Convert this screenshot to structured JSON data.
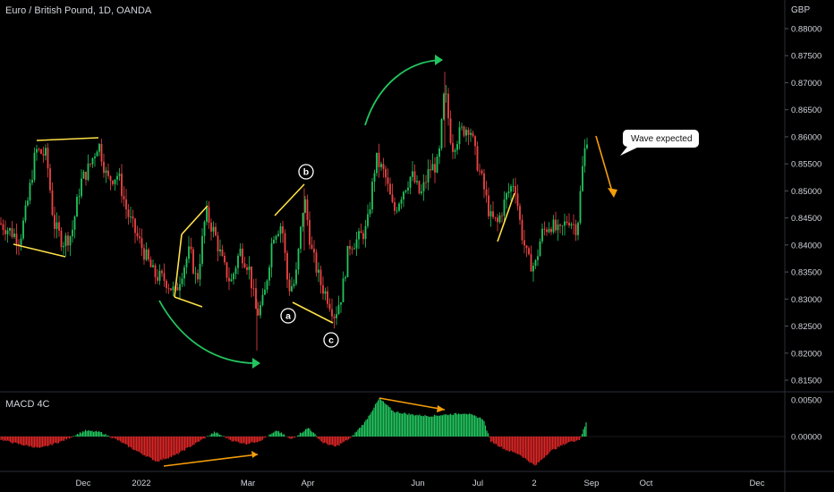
{
  "chart_data": [
    {
      "type": "candlestick",
      "title": "Euro / British Pound, 1D, OANDA",
      "currency": "GBP",
      "y_ticks": [
        0.815,
        0.82,
        0.825,
        0.83,
        0.835,
        0.84,
        0.845,
        0.85,
        0.855,
        0.86,
        0.865,
        0.87,
        0.875,
        0.88
      ],
      "y_tick_labels": [
        "0.81500",
        "0.82000",
        "0.82500",
        "0.83000",
        "0.83500",
        "0.84000",
        "0.84500",
        "0.85000",
        "0.85500",
        "0.86000",
        "0.86500",
        "0.87000",
        "0.87500",
        "0.88000"
      ],
      "ylim": [
        0.8115,
        0.8895
      ],
      "x_tick_labels": [
        "Dec",
        "2022",
        "Mar",
        "Apr",
        "Jun",
        "Jul",
        "2",
        "Sep",
        "Oct",
        "Dec"
      ],
      "up_color": "#22c55e",
      "down_color": "#ef4444",
      "series": [
        {
          "x": "Nov 2021",
          "close": 0.8425
        },
        {
          "x": "Nov 2021",
          "close": 0.8415
        },
        {
          "x": "Dec 2021",
          "close": 0.858
        },
        {
          "x": "Dec 2021",
          "close": 0.843
        },
        {
          "x": "Dec 2021",
          "close": 0.859
        },
        {
          "x": "Dec 2021",
          "close": 0.846
        },
        {
          "x": "Jan 2022",
          "close": 0.839
        },
        {
          "x": "Jan 2022",
          "close": 0.834
        },
        {
          "x": "Feb 2022",
          "close": 0.832
        },
        {
          "x": "Feb 2022",
          "close": 0.845
        },
        {
          "x": "Feb 2022",
          "close": 0.843
        },
        {
          "x": "Mar 2022",
          "close": 0.838
        },
        {
          "x": "Mar 2022",
          "close": 0.826
        },
        {
          "x": "Mar 2022",
          "close": 0.842
        },
        {
          "x": "Apr 2022",
          "close": 0.835
        },
        {
          "x": "Apr 2022",
          "close": 0.849
        },
        {
          "x": "Apr 2022",
          "close": 0.827
        },
        {
          "x": "May 2022",
          "close": 0.841
        },
        {
          "x": "May 2022",
          "close": 0.856
        },
        {
          "x": "May 2022",
          "close": 0.85
        },
        {
          "x": "Jun 2022",
          "close": 0.858
        },
        {
          "x": "Jun 2022",
          "close": 0.86
        },
        {
          "x": "Jun 2022",
          "close": 0.858
        },
        {
          "x": "Jul 2022",
          "close": 0.845
        },
        {
          "x": "Jul 2022",
          "close": 0.841
        },
        {
          "x": "Jul 2022",
          "close": 0.849
        },
        {
          "x": "Aug 2022",
          "close": 0.837
        },
        {
          "x": "Aug 2022",
          "close": 0.842
        },
        {
          "x": "Aug 2022",
          "close": 0.844
        },
        {
          "x": "Aug 2022",
          "close": 0.86
        }
      ],
      "annotations": [
        {
          "text": "a",
          "value": 0.827
        },
        {
          "text": "b",
          "value": 0.851
        },
        {
          "text": "c",
          "value": 0.825
        },
        {
          "text": "Wave expected"
        }
      ]
    },
    {
      "type": "bar",
      "title": "MACD 4C",
      "y_ticks": [
        0.0,
        0.005
      ],
      "y_tick_labels": [
        "0.00000",
        "0.00500"
      ],
      "ylim": [
        -0.0045,
        0.0058
      ],
      "positive_color": "#22c55e",
      "negative_color": "#dc2626"
    }
  ]
}
